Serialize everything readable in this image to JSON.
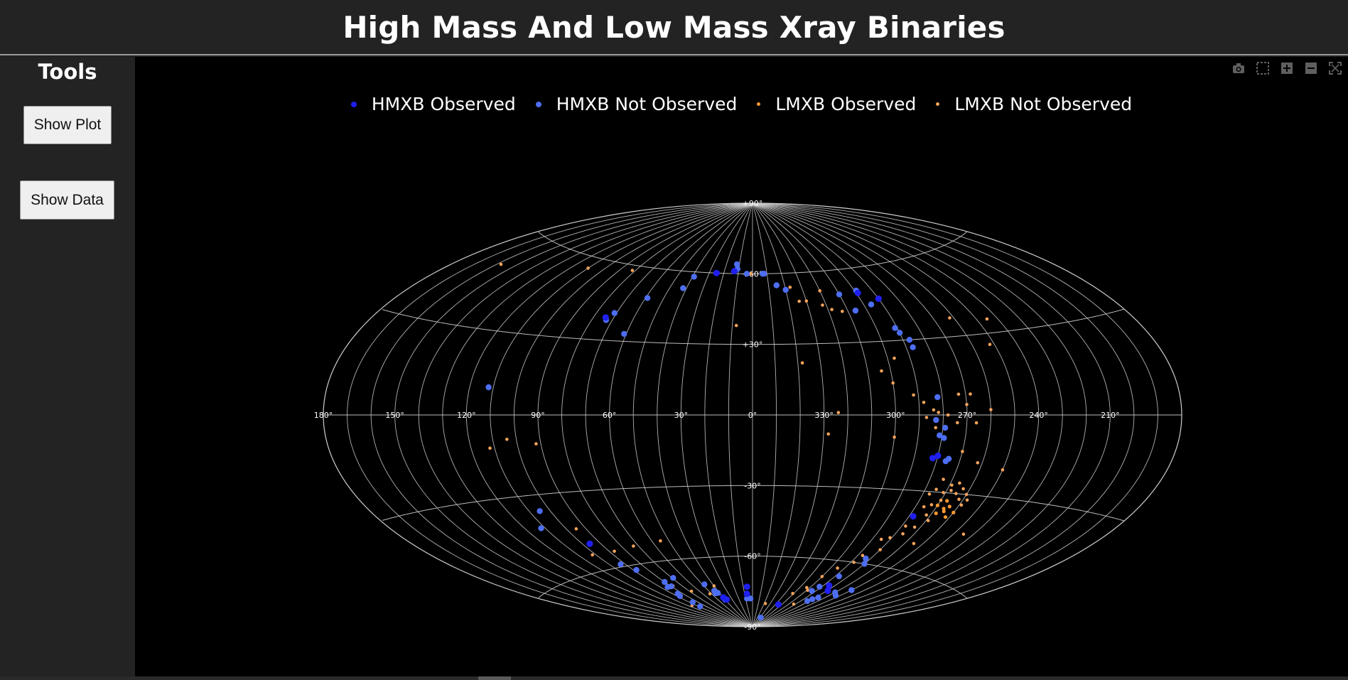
{
  "header": {
    "title": "High Mass And Low Mass Xray Binaries"
  },
  "sidebar": {
    "title": "Tools",
    "buttons": {
      "show_plot": "Show Plot",
      "show_data": "Show Data"
    }
  },
  "modebar": {
    "icons": [
      "camera-icon",
      "box-select-icon",
      "zoom-in-icon",
      "zoom-out-icon",
      "autoscale-icon"
    ]
  },
  "colors": {
    "hmxb_observed": "#1f1ff0",
    "hmxb_not_observed": "#4d6ef2",
    "lmxb_observed": "#ff9933",
    "lmxb_not_observed": "#f5a35a",
    "grid": "#cfcfcf",
    "background": "#000000"
  },
  "chart_data": {
    "type": "scatter",
    "projection": "aitoff",
    "lon_labels": [
      "180°",
      "150°",
      "120°",
      "90°",
      "60°",
      "30°",
      "0°",
      "330°",
      "300°",
      "270°",
      "240°",
      "210°"
    ],
    "lat_labels": [
      "+90°",
      "+60°",
      "+30°",
      "-30°",
      "-60°",
      "-90°"
    ],
    "lon_ticks": [
      180,
      150,
      120,
      90,
      60,
      30,
      0,
      330,
      300,
      270,
      240,
      210
    ],
    "lat_ticks": [
      90,
      60,
      30,
      -30,
      -60,
      -90
    ],
    "legend_position": "top-center",
    "grid": true,
    "series": [
      {
        "name": "HMXB Observed",
        "color": "#1f1ff0",
        "points": [
          [
            25,
            60
          ],
          [
            13,
            61
          ],
          [
            74,
            39
          ],
          [
            290,
            47
          ],
          [
            299,
            50
          ],
          [
            315,
            -80
          ],
          [
            96,
            -50
          ],
          [
            280,
            -16
          ],
          [
            282,
            -17
          ],
          [
            278,
            -40
          ],
          [
            285,
            -70
          ],
          [
            7,
            -76
          ],
          [
            6,
            -73
          ],
          [
            38,
            -78
          ],
          [
            40,
            -77
          ],
          [
            279,
            -72
          ]
        ]
      },
      {
        "name": "HMXB Not Observed",
        "color": "#4d6ef2",
        "points": [
          [
            12,
            64
          ],
          [
            11,
            62
          ],
          [
            4,
            60
          ],
          [
            353,
            60
          ],
          [
            352,
            60
          ],
          [
            345,
            55
          ],
          [
            340,
            53
          ],
          [
            310,
            50
          ],
          [
            306,
            43
          ],
          [
            299,
            51
          ],
          [
            296,
            45
          ],
          [
            291,
            35
          ],
          [
            290,
            33
          ],
          [
            287,
            30
          ],
          [
            287,
            27
          ],
          [
            39,
            58
          ],
          [
            42,
            53
          ],
          [
            59,
            48
          ],
          [
            73,
            38
          ],
          [
            71,
            41
          ],
          [
            61,
            33
          ],
          [
            112,
            10
          ],
          [
            282,
            7
          ],
          [
            283,
            -2
          ],
          [
            279,
            -5
          ],
          [
            281,
            -8
          ],
          [
            279,
            -9
          ],
          [
            275,
            -17
          ],
          [
            276,
            -18
          ],
          [
            105,
            -36
          ],
          [
            112,
            -42
          ],
          [
            93,
            -59
          ],
          [
            88,
            -62
          ],
          [
            80,
            -68
          ],
          [
            80,
            -70
          ],
          [
            84,
            -70
          ],
          [
            85,
            -73
          ],
          [
            87,
            -74
          ],
          [
            86,
            -77
          ],
          [
            88,
            -79
          ],
          [
            69,
            -67
          ],
          [
            48,
            -71
          ],
          [
            44,
            -74
          ],
          [
            45,
            -75
          ],
          [
            42,
            -75
          ],
          [
            40,
            -78
          ],
          [
            8,
            -78
          ],
          [
            3,
            -78
          ],
          [
            283,
            -58
          ],
          [
            280,
            -60
          ],
          [
            287,
            -66
          ],
          [
            292,
            -71
          ],
          [
            294,
            -73
          ],
          [
            260,
            -70
          ],
          [
            264,
            -73
          ],
          [
            270,
            -72
          ],
          [
            277,
            -75
          ],
          [
            280,
            -76
          ],
          [
            282,
            -77
          ],
          [
            327,
            -86
          ]
        ]
      },
      {
        "name": "LMXB Observed",
        "color": "#ff9933",
        "points": [
          [
            265,
            -37
          ],
          [
            268,
            -38
          ],
          [
            266,
            -36
          ],
          [
            270,
            -35
          ],
          [
            264,
            -35
          ],
          [
            267,
            -33
          ],
          [
            262,
            -39
          ],
          [
            260,
            -37
          ]
        ]
      },
      {
        "name": "LMXB Not Observed",
        "color": "#f5a35a",
        "points": [
          [
            158,
            50
          ],
          [
            110,
            56
          ],
          [
            82,
            58
          ],
          [
            8,
            38
          ],
          [
            1,
            60
          ],
          [
            337,
            54
          ],
          [
            334,
            48
          ],
          [
            330,
            48
          ],
          [
            320,
            52
          ],
          [
            322,
            46
          ],
          [
            318,
            44
          ],
          [
            313,
            43
          ],
          [
            262,
            37
          ],
          [
            252,
            26
          ],
          [
            245,
            35
          ],
          [
            304,
            18
          ],
          [
            297,
            23
          ],
          [
            300,
            13
          ],
          [
            292,
            8
          ],
          [
            288,
            5
          ],
          [
            284,
            2
          ],
          [
            282,
            1
          ],
          [
            278,
            0
          ],
          [
            287,
            -1
          ],
          [
            270,
            4
          ],
          [
            268,
            8
          ],
          [
            273,
            8
          ],
          [
            260,
            2
          ],
          [
            274,
            -3
          ],
          [
            283,
            -5
          ],
          [
            266,
            -3
          ],
          [
            300,
            -9
          ],
          [
            270,
            -14
          ],
          [
            262,
            -18
          ],
          [
            250,
            -20
          ],
          [
            274,
            -25
          ],
          [
            269,
            -27
          ],
          [
            266,
            -26
          ],
          [
            263,
            -28
          ],
          [
            260,
            -30
          ],
          [
            258,
            -32
          ],
          [
            275,
            -29
          ],
          [
            277,
            -31
          ],
          [
            271,
            -30
          ],
          [
            268,
            -29
          ],
          [
            265,
            -30
          ],
          [
            262,
            -32
          ],
          [
            259,
            -34
          ],
          [
            270,
            -33
          ],
          [
            273,
            -35
          ],
          [
            276,
            -36
          ],
          [
            278,
            -40
          ],
          [
            272,
            -39
          ],
          [
            269,
            -41
          ],
          [
            273,
            -44
          ],
          [
            278,
            -44
          ],
          [
            276,
            -47
          ],
          [
            281,
            -49
          ],
          [
            285,
            -50
          ],
          [
            280,
            -54
          ],
          [
            287,
            -57
          ],
          [
            265,
            -50
          ],
          [
            245,
            -44
          ],
          [
            92,
            -11
          ],
          [
            104,
            -9
          ],
          [
            112,
            -12
          ],
          [
            95,
            -44
          ],
          [
            102,
            -54
          ],
          [
            87,
            -54
          ],
          [
            73,
            -53
          ],
          [
            55,
            -52
          ],
          [
            78,
            -70
          ],
          [
            68,
            -73
          ],
          [
            52,
            -75
          ],
          [
            40,
            -72
          ],
          [
            95,
            -78
          ],
          [
            288,
            -60
          ],
          [
            295,
            -63
          ],
          [
            300,
            -67
          ],
          [
            303,
            -72
          ],
          [
            311,
            -75
          ],
          [
            338,
            -80
          ],
          [
            293,
            -79
          ],
          [
            328,
            -8
          ],
          [
            324,
            1
          ],
          [
            338,
            22
          ],
          [
            299,
            -73
          ]
        ]
      }
    ]
  }
}
